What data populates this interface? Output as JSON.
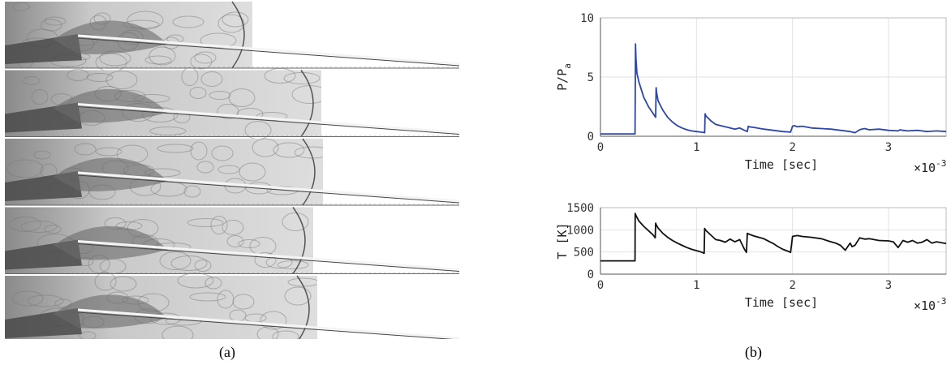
{
  "figure": {
    "panel_a_label": "(a)",
    "panel_b_label": "(b)",
    "frame_count": 5
  },
  "colors": {
    "pressure_line": "#2e46a8",
    "temperature_line": "#111111",
    "grid": "#e2e2e2",
    "axis": "#555555",
    "schlieren_bg": "#d8d8d8"
  },
  "chart_data": [
    {
      "type": "line",
      "title": "",
      "xlabel": "Time [sec]",
      "ylabel": "P/P",
      "ylabel_subscript": "a",
      "x_multiplier": "×10",
      "x_multiplier_exponent": "-3",
      "xlim": [
        0,
        3.6
      ],
      "ylim": [
        0,
        10
      ],
      "xticks": [
        "0",
        "1",
        "2",
        "3"
      ],
      "yticks": [
        "0",
        "5",
        "10"
      ],
      "grid": true,
      "series": [
        {
          "x": [
            0,
            0.36,
            0.365,
            0.37,
            0.38,
            0.4,
            0.45,
            0.5,
            0.55,
            0.575,
            0.58,
            0.585,
            0.6,
            0.65,
            0.7,
            0.75,
            0.8,
            0.85,
            0.9,
            0.95,
            1.0,
            1.05,
            1.085,
            1.09,
            1.1,
            1.15,
            1.2,
            1.25,
            1.3,
            1.35,
            1.4,
            1.45,
            1.5,
            1.53,
            1.54,
            1.55,
            1.6,
            1.7,
            1.8,
            1.9,
            1.98,
            2.0,
            2.02,
            2.05,
            2.1,
            2.2,
            2.3,
            2.4,
            2.5,
            2.6,
            2.65,
            2.7,
            2.72,
            2.75,
            2.8,
            2.9,
            3.0,
            3.1,
            3.12,
            3.15,
            3.2,
            3.3,
            3.35,
            3.4,
            3.5,
            3.6
          ],
          "y": [
            0.2,
            0.2,
            7.8,
            6.5,
            5.3,
            4.6,
            3.3,
            2.5,
            1.9,
            1.6,
            4.1,
            3.7,
            3.0,
            2.2,
            1.6,
            1.2,
            0.9,
            0.7,
            0.55,
            0.45,
            0.4,
            0.35,
            0.3,
            1.9,
            1.7,
            1.3,
            1.0,
            0.9,
            0.8,
            0.7,
            0.6,
            0.7,
            0.5,
            0.4,
            0.85,
            0.8,
            0.75,
            0.6,
            0.5,
            0.4,
            0.35,
            0.85,
            0.9,
            0.8,
            0.85,
            0.7,
            0.65,
            0.6,
            0.5,
            0.4,
            0.3,
            0.55,
            0.6,
            0.65,
            0.55,
            0.6,
            0.5,
            0.45,
            0.55,
            0.5,
            0.45,
            0.5,
            0.45,
            0.4,
            0.45,
            0.4
          ]
        }
      ]
    },
    {
      "type": "line",
      "title": "",
      "xlabel": "Time [sec]",
      "ylabel": "T [K]",
      "x_multiplier": "×10",
      "x_multiplier_exponent": "-3",
      "xlim": [
        0,
        3.6
      ],
      "ylim": [
        0,
        1500
      ],
      "xticks": [
        "0",
        "1",
        "2",
        "3"
      ],
      "yticks": [
        "0",
        "500",
        "1000",
        "1500"
      ],
      "grid": true,
      "series": [
        {
          "x": [
            0,
            0.36,
            0.362,
            0.37,
            0.4,
            0.45,
            0.5,
            0.55,
            0.57,
            0.575,
            0.58,
            0.6,
            0.65,
            0.7,
            0.75,
            0.8,
            0.85,
            0.9,
            0.95,
            1.0,
            1.05,
            1.08,
            1.085,
            1.1,
            1.15,
            1.2,
            1.25,
            1.3,
            1.35,
            1.4,
            1.45,
            1.5,
            1.52,
            1.53,
            1.55,
            1.6,
            1.7,
            1.8,
            1.85,
            1.9,
            1.95,
            1.98,
            2.0,
            2.02,
            2.05,
            2.1,
            2.2,
            2.3,
            2.4,
            2.45,
            2.5,
            2.55,
            2.6,
            2.62,
            2.65,
            2.7,
            2.75,
            2.8,
            2.9,
            3.0,
            3.05,
            3.1,
            3.15,
            3.2,
            3.25,
            3.3,
            3.35,
            3.4,
            3.45,
            3.5,
            3.6
          ],
          "y": [
            300,
            300,
            1370,
            1320,
            1200,
            1080,
            980,
            880,
            820,
            1150,
            1120,
            1040,
            920,
            830,
            760,
            700,
            650,
            600,
            560,
            530,
            500,
            470,
            1030,
            980,
            880,
            780,
            760,
            720,
            790,
            730,
            780,
            560,
            490,
            920,
            900,
            860,
            800,
            690,
            620,
            560,
            520,
            490,
            850,
            860,
            870,
            850,
            830,
            800,
            730,
            700,
            650,
            540,
            700,
            620,
            650,
            820,
            790,
            800,
            760,
            750,
            730,
            600,
            760,
            720,
            760,
            700,
            720,
            780,
            700,
            730,
            690
          ]
        }
      ]
    }
  ]
}
